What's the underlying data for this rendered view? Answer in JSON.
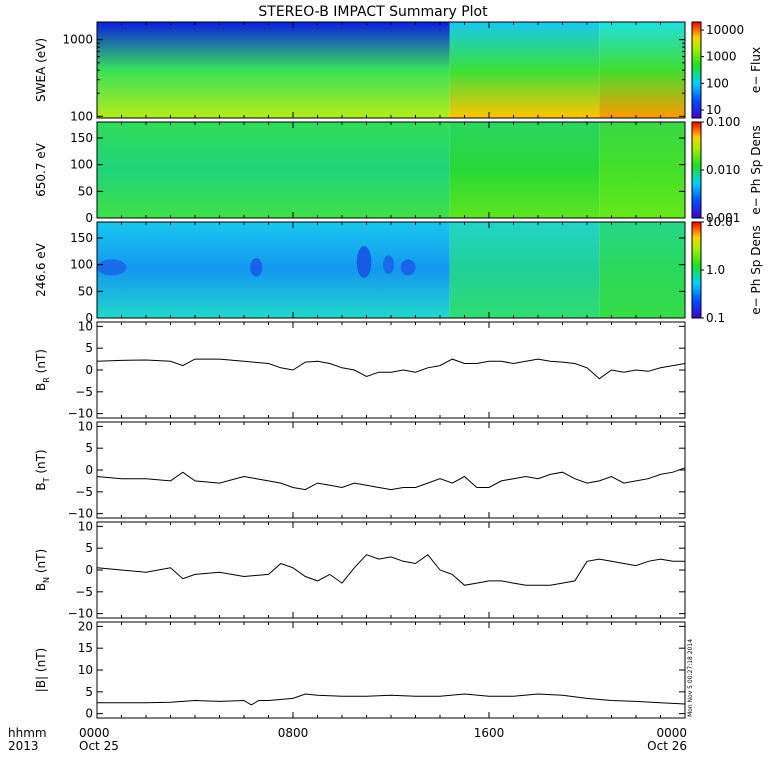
{
  "title": "STEREO-B IMPACT Summary Plot",
  "stamp": "Mon Nov  5 00:27:18 2014",
  "time_axis": {
    "line1": "hhmm",
    "line2": "2013",
    "ticks": [
      {
        "hour": 0,
        "label": "0000",
        "date": "Oct 25"
      },
      {
        "hour": 8,
        "label": "0800",
        "date": ""
      },
      {
        "hour": 16,
        "label": "1600",
        "date": ""
      },
      {
        "hour": 24,
        "label": "0000",
        "date": "Oct 26"
      }
    ]
  },
  "colors": {
    "line": "#000000",
    "frame": "#000000"
  },
  "chart_data": [
    {
      "type": "heatmap",
      "ylabel": "SWEA (eV)",
      "ylog": true,
      "ylim": [
        95,
        1700
      ],
      "yticks": [
        {
          "v": 100,
          "label": "100"
        },
        {
          "v": 1000,
          "label": "1000"
        }
      ],
      "colorbar": {
        "label": "e− Flux",
        "log": true,
        "range": [
          5,
          20000
        ],
        "ticks": [
          {
            "v": 10,
            "label": "10"
          },
          {
            "v": 100,
            "label": "100"
          },
          {
            "v": 1000,
            "label": "1000"
          },
          {
            "v": 10000,
            "label": "10000"
          }
        ]
      },
      "segments": [
        {
          "t0": 0,
          "t1": 14.4,
          "bottom": "#b4ec1a",
          "mid": "#38e05a",
          "top": "#0a1ee0"
        },
        {
          "t0": 14.4,
          "t1": 20.5,
          "bottom": "#ffc400",
          "mid": "#3ae03a",
          "top": "#18c8f0"
        },
        {
          "t0": 20.5,
          "t1": 24,
          "bottom": "#ff9a00",
          "mid": "#40de30",
          "top": "#20e0e0"
        }
      ]
    },
    {
      "type": "heatmap",
      "ylabel": "650.7 eV",
      "ylim": [
        0,
        180
      ],
      "yticks": [
        {
          "v": 0,
          "label": "0"
        },
        {
          "v": 50,
          "label": "50"
        },
        {
          "v": 100,
          "label": "100"
        },
        {
          "v": 150,
          "label": "150"
        }
      ],
      "colorbar": {
        "label": "e− Ph Sp Dens",
        "log": true,
        "range": [
          0.001,
          0.1
        ],
        "ticks": [
          {
            "v": 0.001,
            "label": "0.001"
          },
          {
            "v": 0.01,
            "label": "0.010"
          },
          {
            "v": 0.1,
            "label": "0.100"
          }
        ]
      },
      "segments": [
        {
          "t0": 0,
          "t1": 14.4,
          "bottom": "#40e048",
          "mid": "#20d47a",
          "top": "#30dc58"
        },
        {
          "t0": 14.4,
          "t1": 20.5,
          "bottom": "#5ee61e",
          "mid": "#28d838",
          "top": "#2ad660"
        },
        {
          "t0": 20.5,
          "t1": 24,
          "bottom": "#66e81a",
          "mid": "#44e02a",
          "top": "#3ad848"
        }
      ]
    },
    {
      "type": "heatmap",
      "ylabel": "246.6 eV",
      "ylim": [
        0,
        180
      ],
      "yticks": [
        {
          "v": 0,
          "label": "0"
        },
        {
          "v": 50,
          "label": "50"
        },
        {
          "v": 100,
          "label": "100"
        },
        {
          "v": 150,
          "label": "150"
        }
      ],
      "colorbar": {
        "label": "e− Ph Sp Dens",
        "log": true,
        "range": [
          0.1,
          10
        ],
        "ticks": [
          {
            "v": 0.1,
            "label": "0.1"
          },
          {
            "v": 1,
            "label": "1.0"
          },
          {
            "v": 10,
            "label": "10.0"
          }
        ]
      },
      "segments": [
        {
          "t0": 0,
          "t1": 14.4,
          "bottom": "#22d8c8",
          "mid": "#1498f0",
          "top": "#18c8ec"
        },
        {
          "t0": 14.4,
          "t1": 20.5,
          "bottom": "#30dc70",
          "mid": "#20d098",
          "top": "#22d4c8"
        },
        {
          "t0": 20.5,
          "t1": 24,
          "bottom": "#36dc48",
          "mid": "#2ad85a",
          "top": "#26d888"
        }
      ],
      "blobs": [
        {
          "t": 0.6,
          "y": 95,
          "w": 1.2,
          "h": 30,
          "color": "#1a64e6"
        },
        {
          "t": 6.5,
          "y": 95,
          "w": 0.5,
          "h": 35,
          "color": "#1a58e6"
        },
        {
          "t": 10.9,
          "y": 105,
          "w": 0.6,
          "h": 60,
          "color": "#1650e0"
        },
        {
          "t": 11.9,
          "y": 100,
          "w": 0.45,
          "h": 35,
          "color": "#1a60e6"
        },
        {
          "t": 12.7,
          "y": 95,
          "w": 0.6,
          "h": 30,
          "color": "#1a5ae6"
        }
      ]
    },
    {
      "type": "line",
      "ylabel": "B",
      "ysub": "R",
      "yunit": " (nT)",
      "ylim": [
        -11,
        11
      ],
      "yticks": [
        {
          "v": -10,
          "label": "−10"
        },
        {
          "v": -5,
          "label": "−5"
        },
        {
          "v": 0,
          "label": "0"
        },
        {
          "v": 5,
          "label": "5"
        },
        {
          "v": 10,
          "label": "10"
        }
      ],
      "x": [
        0,
        1,
        2,
        3,
        3.5,
        4,
        5,
        6,
        7,
        7.5,
        8,
        8.5,
        9,
        9.5,
        10,
        10.5,
        11,
        11.5,
        12,
        12.5,
        13,
        13.5,
        14,
        14.5,
        15,
        15.5,
        16,
        16.5,
        17,
        17.5,
        18,
        18.5,
        19,
        19.5,
        20,
        20.5,
        21,
        21.5,
        22,
        22.5,
        23,
        23.5,
        24
      ],
      "y": [
        2,
        2.2,
        2.3,
        2.0,
        1.0,
        2.5,
        2.5,
        2.0,
        1.5,
        0.5,
        0.0,
        1.8,
        2.0,
        1.5,
        0.5,
        0.0,
        -1.5,
        -0.5,
        -0.5,
        0.0,
        -0.5,
        0.5,
        1.0,
        2.5,
        1.5,
        1.5,
        2.0,
        2.0,
        1.5,
        2.0,
        2.5,
        2.0,
        1.8,
        1.5,
        0.5,
        -2.0,
        0.0,
        -0.5,
        0.0,
        -0.3,
        0.5,
        1.0,
        1.5
      ]
    },
    {
      "type": "line",
      "ylabel": "B",
      "ysub": "T",
      "yunit": " (nT)",
      "ylim": [
        -11,
        11
      ],
      "yticks": [
        {
          "v": -10,
          "label": "−10"
        },
        {
          "v": -5,
          "label": "−5"
        },
        {
          "v": 0,
          "label": "0"
        },
        {
          "v": 5,
          "label": "5"
        },
        {
          "v": 10,
          "label": "10"
        }
      ],
      "x": [
        0,
        1,
        2,
        3,
        3.5,
        4,
        5,
        6,
        6.5,
        7,
        7.5,
        8,
        8.5,
        9,
        9.5,
        10,
        10.5,
        11,
        11.5,
        12,
        12.5,
        13,
        13.5,
        14,
        14.5,
        15,
        15.5,
        16,
        16.5,
        17,
        17.5,
        18,
        18.5,
        19,
        19.5,
        20,
        20.5,
        21,
        21.5,
        22,
        22.5,
        23,
        23.5,
        24
      ],
      "y": [
        -1.5,
        -2.0,
        -2.0,
        -2.5,
        -0.5,
        -2.5,
        -3.0,
        -1.5,
        -2.0,
        -2.5,
        -3.0,
        -4.0,
        -4.5,
        -3.0,
        -3.5,
        -4.0,
        -3.0,
        -3.5,
        -4.0,
        -4.5,
        -4.0,
        -4.0,
        -3.0,
        -2.0,
        -3.0,
        -1.5,
        -4.0,
        -4.0,
        -2.5,
        -2.0,
        -1.5,
        -2.0,
        -1.0,
        -0.5,
        -2.0,
        -3.0,
        -2.5,
        -1.5,
        -3.0,
        -2.5,
        -2.0,
        -1.0,
        -0.5,
        0.5
      ]
    },
    {
      "type": "line",
      "ylabel": "B",
      "ysub": "N",
      "yunit": " (nT)",
      "ylim": [
        -11,
        11
      ],
      "yticks": [
        {
          "v": -10,
          "label": "−10"
        },
        {
          "v": -5,
          "label": "−5"
        },
        {
          "v": 0,
          "label": "0"
        },
        {
          "v": 5,
          "label": "5"
        },
        {
          "v": 10,
          "label": "10"
        }
      ],
      "x": [
        0,
        1,
        2,
        3,
        3.5,
        4,
        5,
        6,
        7,
        7.5,
        8,
        8.5,
        9,
        9.5,
        10,
        10.5,
        11,
        11.5,
        12,
        12.5,
        13,
        13.5,
        14,
        14.5,
        15,
        15.5,
        16,
        16.5,
        17,
        17.5,
        18,
        18.5,
        19,
        19.5,
        20,
        20.5,
        21,
        21.5,
        22,
        22.5,
        23,
        23.5,
        24
      ],
      "y": [
        0.5,
        0.0,
        -0.5,
        0.5,
        -2.0,
        -1.0,
        -0.5,
        -1.5,
        -1.0,
        1.5,
        0.5,
        -1.5,
        -2.5,
        -1.0,
        -3.0,
        0.5,
        3.5,
        2.5,
        3.0,
        2.0,
        1.5,
        3.5,
        0.0,
        -1.0,
        -3.5,
        -3.0,
        -2.5,
        -2.5,
        -3.0,
        -3.5,
        -3.5,
        -3.5,
        -3.0,
        -2.5,
        2.0,
        2.5,
        2.0,
        1.5,
        1.0,
        2.0,
        2.5,
        2.0,
        2.0
      ]
    },
    {
      "type": "line",
      "ylabel": "|B| (nT)",
      "ylim": [
        -1,
        21
      ],
      "yticks": [
        {
          "v": 0,
          "label": "0"
        },
        {
          "v": 5,
          "label": "5"
        },
        {
          "v": 10,
          "label": "10"
        },
        {
          "v": 15,
          "label": "15"
        },
        {
          "v": 20,
          "label": "20"
        }
      ],
      "x": [
        0,
        1,
        2,
        3,
        4,
        5,
        6,
        6.3,
        6.6,
        7,
        8,
        8.5,
        9,
        10,
        11,
        12,
        13,
        14,
        15,
        16,
        17,
        18,
        19,
        20,
        21,
        22,
        23,
        24
      ],
      "y": [
        2.5,
        2.5,
        2.5,
        2.6,
        3.0,
        2.8,
        3.0,
        2.0,
        3.0,
        3.0,
        3.5,
        4.5,
        4.2,
        4.0,
        4.0,
        4.2,
        4.0,
        4.0,
        4.5,
        4.0,
        4.0,
        4.5,
        4.2,
        3.5,
        3.0,
        2.8,
        2.5,
        2.2
      ]
    }
  ]
}
